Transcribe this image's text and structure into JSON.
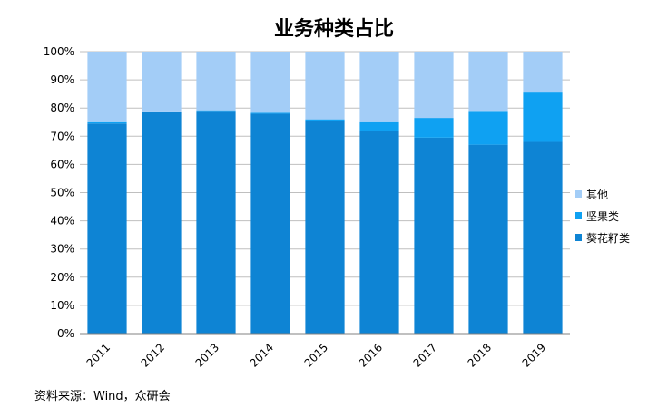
{
  "title": "业务种类占比",
  "source": "资料来源：Wind，众研会",
  "chart_data": {
    "type": "bar",
    "stacked": true,
    "title": "业务种类占比",
    "categories": [
      "2011",
      "2012",
      "2013",
      "2014",
      "2015",
      "2016",
      "2017",
      "2018",
      "2019"
    ],
    "series": [
      {
        "name": "葵花籽类",
        "color": "#0E84D4",
        "values": [
          74.5,
          78.5,
          79,
          78,
          75.5,
          72,
          69.5,
          67,
          68
        ]
      },
      {
        "name": "坚果类",
        "color": "#0FA1F2",
        "values": [
          0.5,
          0.3,
          0.2,
          0.3,
          0.5,
          3,
          7,
          12,
          17.5
        ]
      },
      {
        "name": "其他",
        "color": "#A3CDF7",
        "values": [
          25,
          21.2,
          20.8,
          21.7,
          24,
          25,
          23.5,
          21,
          14.5
        ]
      }
    ],
    "y_ticks": [
      "0%",
      "10%",
      "20%",
      "30%",
      "40%",
      "50%",
      "60%",
      "70%",
      "80%",
      "90%",
      "100%"
    ],
    "ylim": [
      0,
      100
    ],
    "grid": true,
    "legend_position": "right"
  }
}
